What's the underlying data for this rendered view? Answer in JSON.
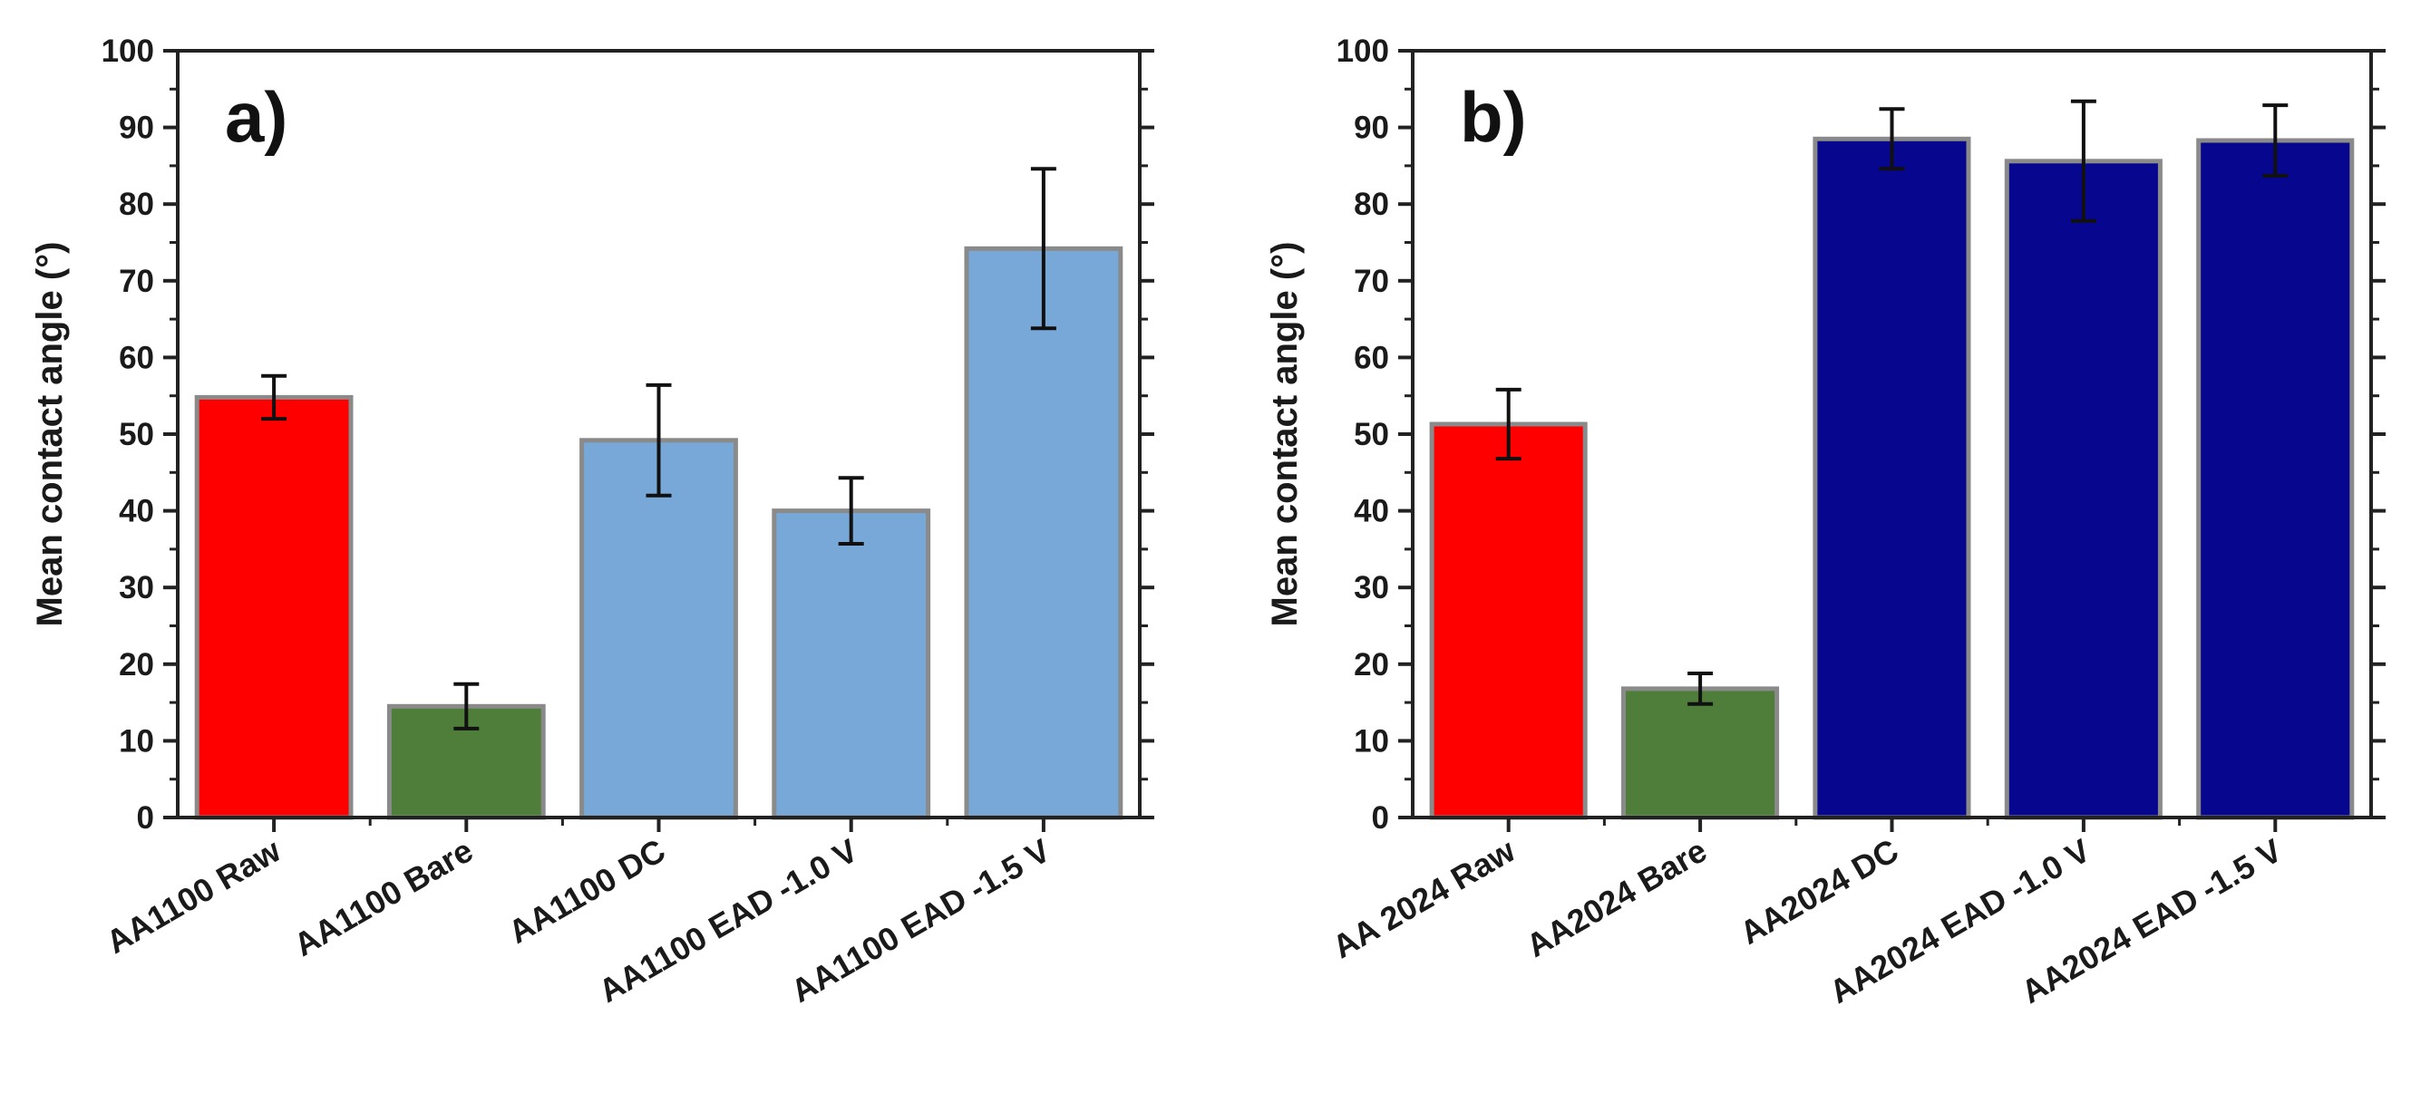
{
  "chart_data": [
    {
      "type": "bar",
      "panel_label": "a)",
      "ylabel": "Mean contact angle (°)",
      "xlabel": "",
      "ylim": [
        0,
        100
      ],
      "yticks": [
        0,
        10,
        20,
        30,
        40,
        50,
        60,
        70,
        80,
        90,
        100
      ],
      "grid": false,
      "categories": [
        "AA1100 Raw",
        "AA1100 Bare",
        "AA1100 DC",
        "AA1100 EAD -1.0 V",
        "AA1100 EAD -1.5 V"
      ],
      "values": [
        54.8,
        14.5,
        49.2,
        40.0,
        74.2
      ],
      "errors": [
        2.8,
        2.9,
        7.2,
        4.3,
        10.4
      ],
      "colors": [
        "#ff0000",
        "#4e7e3a",
        "#78a8d8",
        "#78a8d8",
        "#78a8d8"
      ]
    },
    {
      "type": "bar",
      "panel_label": "b)",
      "ylabel": "Mean contact angle (°)",
      "xlabel": "",
      "ylim": [
        0,
        100
      ],
      "yticks": [
        0,
        10,
        20,
        30,
        40,
        50,
        60,
        70,
        80,
        90,
        100
      ],
      "grid": false,
      "categories": [
        "AA 2024 Raw",
        "AA2024 Bare",
        "AA2024 DC",
        "AA2024 EAD -1.0 V",
        "AA2024 EAD -1.5 V"
      ],
      "values": [
        51.3,
        16.8,
        88.5,
        85.6,
        88.3
      ],
      "errors": [
        4.5,
        2.0,
        3.9,
        7.8,
        4.6
      ],
      "colors": [
        "#ff0000",
        "#4e7e3a",
        "#06068e",
        "#06068e",
        "#06068e"
      ]
    }
  ]
}
